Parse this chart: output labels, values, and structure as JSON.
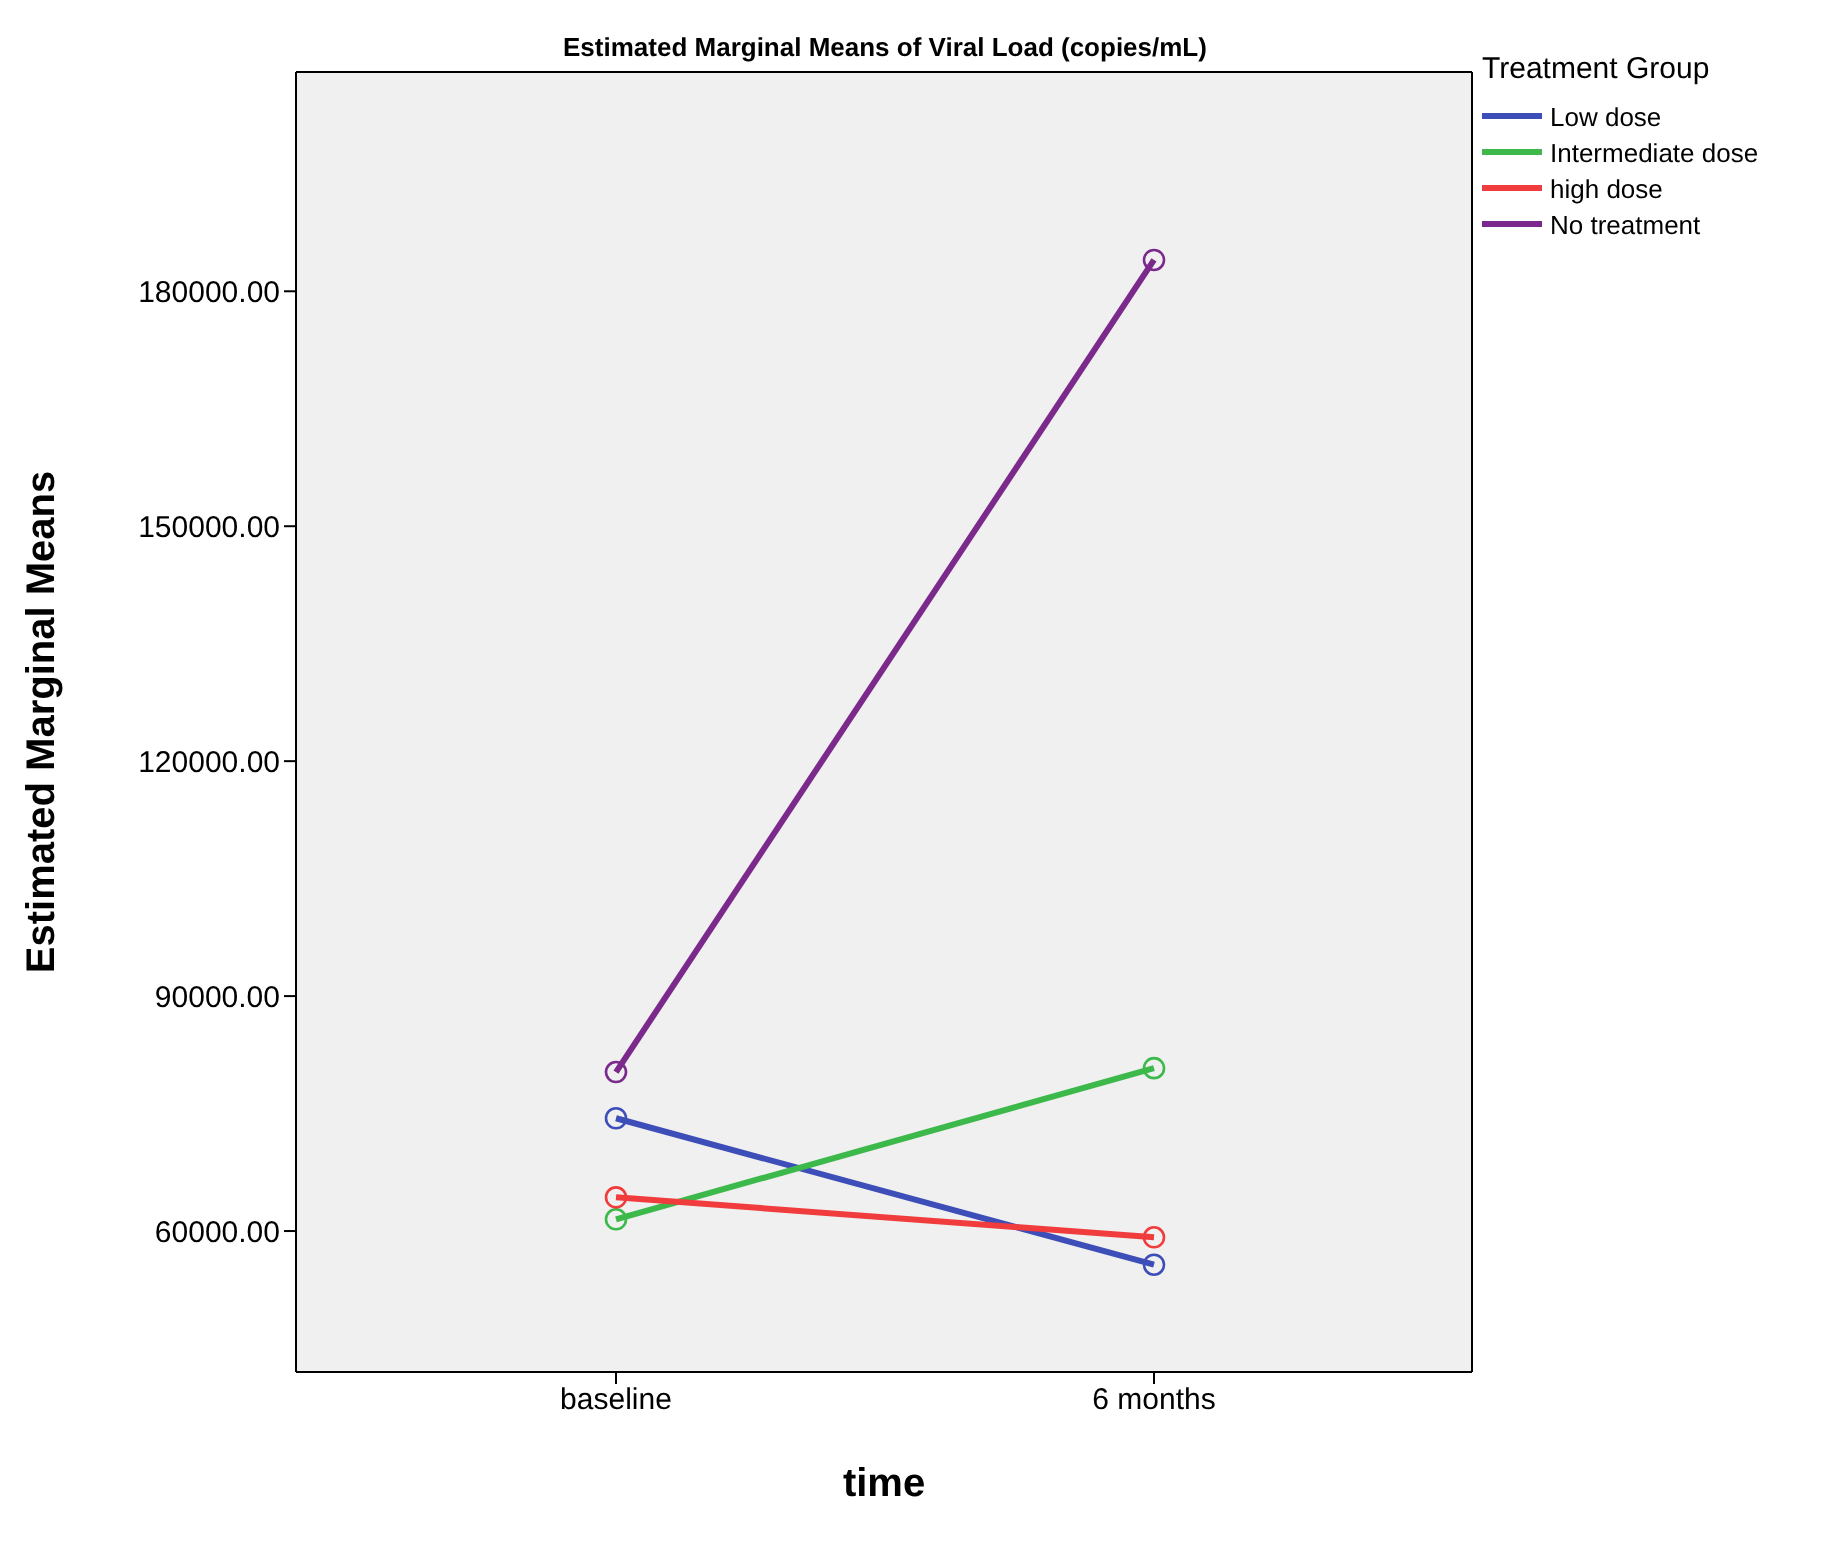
{
  "chart_data": {
    "type": "line",
    "title": "Estimated Marginal Means of Viral Load (copies/mL)",
    "xlabel": "time",
    "ylabel": "Estimated Marginal Means",
    "legend_title": "Treatment Group",
    "categories": [
      "baseline",
      "6 months"
    ],
    "series": [
      {
        "name": "Low dose",
        "color": "#3d4eb8",
        "values": [
          74400,
          55700
        ]
      },
      {
        "name": "Intermediate dose",
        "color": "#3cb94a",
        "values": [
          61500,
          80800
        ]
      },
      {
        "name": "high dose",
        "color": "#f03c3c",
        "values": [
          64300,
          59200
        ]
      },
      {
        "name": "No treatment",
        "color": "#7b2a8c",
        "values": [
          80300,
          184000
        ]
      }
    ],
    "ylim": [
      42000,
      208000
    ],
    "yticks": [
      {
        "value": 60000,
        "label": "60000.00"
      },
      {
        "value": 90000,
        "label": "90000.00"
      },
      {
        "value": 120000,
        "label": "120000.00"
      },
      {
        "value": 150000,
        "label": "150000.00"
      },
      {
        "value": 180000,
        "label": "180000.00"
      }
    ],
    "legend": "top right",
    "marker": "circle",
    "line_style": "solid"
  }
}
